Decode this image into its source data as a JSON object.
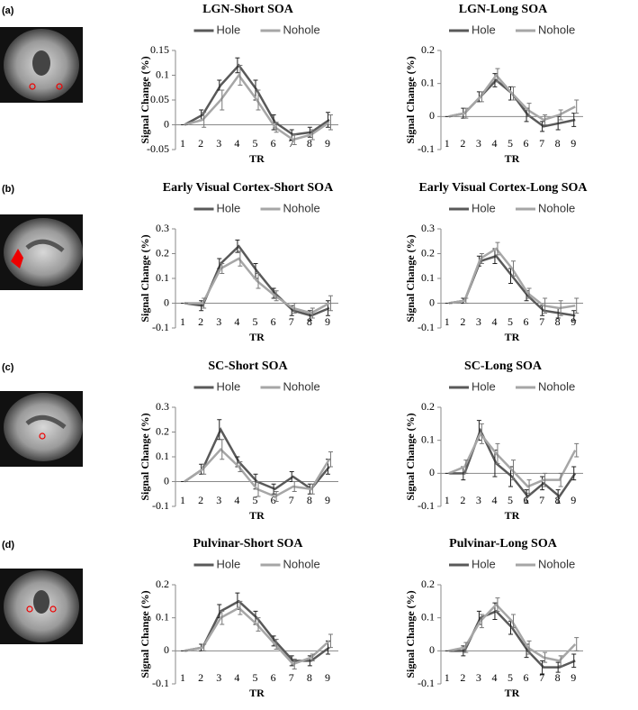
{
  "panel_labels": [
    "(a)",
    "(b)",
    "(c)",
    "(d)"
  ],
  "chart_data": [
    {
      "type": "line",
      "title": "LGN-Short SOA",
      "x_label": "TR",
      "y_label": "Signal Change (%)",
      "legend": "top",
      "categories": [
        "1",
        "2",
        "3",
        "4",
        "5",
        "6",
        "7",
        "8",
        "9"
      ],
      "ylim": [
        -0.05,
        0.15
      ],
      "yticks": [
        -0.05,
        0,
        0.05,
        0.1,
        0.15
      ],
      "series": [
        {
          "name": "Hole",
          "color": "#595959",
          "values": [
            0,
            0.02,
            0.08,
            0.12,
            0.07,
            0.005,
            -0.02,
            -0.015,
            0.01
          ],
          "errors": [
            0,
            0.01,
            0.01,
            0.015,
            0.02,
            0.015,
            0.01,
            0.01,
            0.015
          ]
        },
        {
          "name": "Nohole",
          "color": "#a6a6a6",
          "values": [
            0,
            0.01,
            0.05,
            0.1,
            0.05,
            -0.005,
            -0.03,
            -0.02,
            0.005
          ],
          "errors": [
            0,
            0.015,
            0.02,
            0.02,
            0.02,
            0.01,
            0.01,
            0.01,
            0.015
          ]
        }
      ]
    },
    {
      "type": "line",
      "title": "LGN-Long SOA",
      "x_label": "TR",
      "y_label": "Signal Change (%)",
      "legend": "top",
      "categories": [
        "1",
        "2",
        "3",
        "4",
        "5",
        "6",
        "7",
        "8",
        "9"
      ],
      "ylim": [
        -0.1,
        0.2
      ],
      "yticks": [
        -0.1,
        0,
        0.1,
        0.2
      ],
      "series": [
        {
          "name": "Hole",
          "color": "#595959",
          "values": [
            0,
            0.01,
            0.06,
            0.11,
            0.07,
            0.005,
            -0.03,
            -0.02,
            -0.01
          ],
          "errors": [
            0,
            0.015,
            0.015,
            0.02,
            0.02,
            0.02,
            0.015,
            0.02,
            0.02
          ]
        },
        {
          "name": "Nohole",
          "color": "#a6a6a6",
          "values": [
            0,
            0.01,
            0.06,
            0.125,
            0.07,
            0.02,
            -0.01,
            0.005,
            0.03
          ],
          "errors": [
            0,
            0.015,
            0.015,
            0.02,
            0.02,
            0.02,
            0.015,
            0.015,
            0.02
          ]
        }
      ]
    },
    {
      "type": "line",
      "title": "Early Visual Cortex-Short SOA",
      "x_label": "TR",
      "y_label": "Signal Change (%)",
      "legend": "top",
      "categories": [
        "1",
        "2",
        "3",
        "4",
        "5",
        "6",
        "7",
        "8",
        "9"
      ],
      "ylim": [
        -0.1,
        0.3
      ],
      "yticks": [
        -0.1,
        0,
        0.1,
        0.2,
        0.3
      ],
      "series": [
        {
          "name": "Hole",
          "color": "#595959",
          "values": [
            0,
            -0.01,
            0.16,
            0.23,
            0.13,
            0.04,
            -0.03,
            -0.05,
            -0.02
          ],
          "errors": [
            0,
            0.02,
            0.02,
            0.025,
            0.03,
            0.02,
            0.02,
            0.02,
            0.03
          ]
        },
        {
          "name": "Nohole",
          "color": "#a6a6a6",
          "values": [
            0,
            0,
            0.14,
            0.18,
            0.09,
            0.03,
            -0.02,
            -0.04,
            0
          ],
          "errors": [
            0,
            0.02,
            0.02,
            0.03,
            0.03,
            0.02,
            0.02,
            0.02,
            0.03
          ]
        }
      ]
    },
    {
      "type": "line",
      "title": "Early Visual Cortex-Long SOA",
      "x_label": "TR",
      "y_label": "Signal Change (%)",
      "legend": "top",
      "categories": [
        "1",
        "2",
        "3",
        "4",
        "5",
        "6",
        "7",
        "8",
        "9"
      ],
      "ylim": [
        -0.1,
        0.3
      ],
      "yticks": [
        -0.1,
        0,
        0.1,
        0.2,
        0.3
      ],
      "series": [
        {
          "name": "Hole",
          "color": "#595959",
          "values": [
            0,
            0.01,
            0.17,
            0.19,
            0.11,
            0.03,
            -0.03,
            -0.04,
            -0.05
          ],
          "errors": [
            0,
            0.01,
            0.02,
            0.03,
            0.03,
            0.02,
            0.02,
            0.02,
            0.02
          ]
        },
        {
          "name": "Nohole",
          "color": "#a6a6a6",
          "values": [
            0,
            0.01,
            0.18,
            0.22,
            0.14,
            0.04,
            -0.01,
            -0.02,
            -0.01
          ],
          "errors": [
            0,
            0.01,
            0.02,
            0.025,
            0.03,
            0.02,
            0.03,
            0.03,
            0.03
          ]
        }
      ]
    },
    {
      "type": "line",
      "title": "SC-Short SOA",
      "x_label": "TR",
      "y_label": "Signal Change (%)",
      "legend": "top",
      "categories": [
        "1",
        "2",
        "3",
        "4",
        "5",
        "6",
        "7",
        "8",
        "9"
      ],
      "ylim": [
        -0.1,
        0.3
      ],
      "yticks": [
        -0.1,
        0,
        0.1,
        0.2,
        0.3
      ],
      "series": [
        {
          "name": "Hole",
          "color": "#595959",
          "values": [
            0,
            0.05,
            0.21,
            0.08,
            0,
            -0.03,
            0.02,
            -0.03,
            0.06
          ],
          "errors": [
            0,
            0.02,
            0.04,
            0.02,
            0.03,
            0.02,
            0.02,
            0.02,
            0.03
          ]
        },
        {
          "name": "Nohole",
          "color": "#a6a6a6",
          "values": [
            0,
            0.05,
            0.13,
            0.06,
            -0.03,
            -0.06,
            -0.02,
            -0.03,
            0.09
          ],
          "errors": [
            0,
            0.02,
            0.04,
            0.02,
            0.03,
            0.02,
            0.02,
            0.02,
            0.03
          ]
        }
      ]
    },
    {
      "type": "line",
      "title": "SC-Long SOA",
      "x_label": "TR",
      "y_label": "Signal Change (%)",
      "legend": "top",
      "categories": [
        "1",
        "2",
        "3",
        "4",
        "5",
        "6",
        "7",
        "8",
        "9"
      ],
      "ylim": [
        -0.1,
        0.2
      ],
      "yticks": [
        -0.1,
        0,
        0.1,
        0.2
      ],
      "series": [
        {
          "name": "Hole",
          "color": "#595959",
          "values": [
            0,
            0,
            0.13,
            0.03,
            -0.01,
            -0.07,
            -0.03,
            -0.07,
            0
          ],
          "errors": [
            0,
            0.02,
            0.03,
            0.04,
            0.03,
            0.02,
            0.02,
            0.02,
            0.02
          ]
        },
        {
          "name": "Nohole",
          "color": "#a6a6a6",
          "values": [
            0,
            0.02,
            0.12,
            0.06,
            0.01,
            -0.04,
            -0.02,
            -0.02,
            0.07
          ],
          "errors": [
            0,
            0.02,
            0.03,
            0.03,
            0.03,
            0.02,
            0.02,
            0.02,
            0.02
          ]
        }
      ]
    },
    {
      "type": "line",
      "title": "Pulvinar-Short SOA",
      "x_label": "TR",
      "y_label": "Signal Change (%)",
      "legend": "top",
      "categories": [
        "1",
        "2",
        "3",
        "4",
        "5",
        "6",
        "7",
        "8",
        "9"
      ],
      "ylim": [
        -0.1,
        0.2
      ],
      "yticks": [
        -0.1,
        0,
        0.1,
        0.2
      ],
      "series": [
        {
          "name": "Hole",
          "color": "#595959",
          "values": [
            0,
            0.01,
            0.12,
            0.15,
            0.1,
            0.03,
            -0.03,
            -0.03,
            0.01
          ],
          "errors": [
            0,
            0.01,
            0.02,
            0.025,
            0.02,
            0.015,
            0.015,
            0.015,
            0.02
          ]
        },
        {
          "name": "Nohole",
          "color": "#a6a6a6",
          "values": [
            0,
            0.01,
            0.1,
            0.13,
            0.08,
            0.02,
            -0.04,
            -0.02,
            0.03
          ],
          "errors": [
            0,
            0.01,
            0.02,
            0.02,
            0.02,
            0.015,
            0.015,
            0.01,
            0.02
          ]
        }
      ]
    },
    {
      "type": "line",
      "title": "Pulvinar-Long SOA",
      "x_label": "TR",
      "y_label": "Signal Change (%)",
      "legend": "top",
      "categories": [
        "1",
        "2",
        "3",
        "4",
        "5",
        "6",
        "7",
        "8",
        "9"
      ],
      "ylim": [
        -0.1,
        0.2
      ],
      "yticks": [
        -0.1,
        0,
        0.1,
        0.2
      ],
      "series": [
        {
          "name": "Hole",
          "color": "#595959",
          "values": [
            0,
            0,
            0.1,
            0.12,
            0.07,
            0,
            -0.05,
            -0.05,
            -0.03
          ],
          "errors": [
            0,
            0.015,
            0.02,
            0.025,
            0.02,
            0.02,
            0.02,
            0.015,
            0.02
          ]
        },
        {
          "name": "Nohole",
          "color": "#a6a6a6",
          "values": [
            0,
            0.01,
            0.09,
            0.14,
            0.09,
            0.01,
            -0.02,
            -0.03,
            0.02
          ],
          "errors": [
            0,
            0.015,
            0.02,
            0.02,
            0.02,
            0.02,
            0.015,
            0.015,
            0.02
          ]
        }
      ]
    }
  ]
}
